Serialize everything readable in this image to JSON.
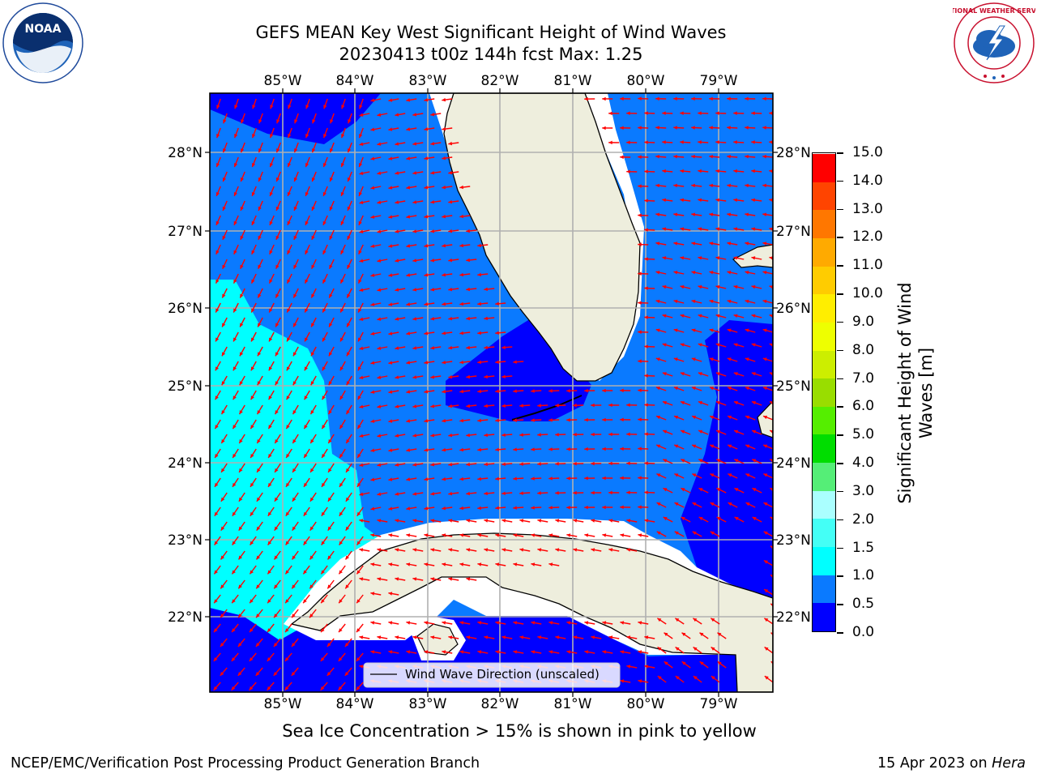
{
  "header": {
    "title_line1": "GEFS MEAN Key West Significant Height of Wind Waves",
    "title_line2": "20230413 t00z 144h fcst   Max: 1.25"
  },
  "logos": {
    "left": "NOAA",
    "right_ring_text": "NATIONAL WEATHER SERVICE"
  },
  "map": {
    "lon_labels": [
      "85°W",
      "84°W",
      "83°W",
      "82°W",
      "81°W",
      "80°W",
      "79°W"
    ],
    "lat_labels": [
      "28°N",
      "27°N",
      "26°N",
      "25°N",
      "24°N",
      "23°N",
      "22°N"
    ],
    "legend_label": "Wind Wave Direction (unscaled)",
    "colors": {
      "ocean_dark": "#0000ff",
      "ocean_mid": "#0a7aff",
      "ocean_light": "#00ffff",
      "land": "#eeeedd",
      "arrows": "#ff0000",
      "grid": "#b0b0b0"
    }
  },
  "colorbar": {
    "title": "Significant Height of Wind Waves [m]",
    "labels": [
      "0.0",
      "0.5",
      "1.0",
      "1.5",
      "2.0",
      "3.0",
      "4.0",
      "5.0",
      "6.0",
      "7.0",
      "8.0",
      "9.0",
      "10.0",
      "11.0",
      "12.0",
      "13.0",
      "14.0",
      "15.0"
    ],
    "colors": [
      "#0000ff",
      "#0a7aff",
      "#00ffff",
      "#44fff6",
      "#aaffff",
      "#55ee77",
      "#00dd00",
      "#55ee00",
      "#99dd00",
      "#ccee00",
      "#eeff00",
      "#ffee00",
      "#ffcc00",
      "#ffaa00",
      "#ff7700",
      "#ff4400",
      "#ff0000"
    ]
  },
  "notes": {
    "sea_ice": "Sea Ice Concentration > 15% is shown in pink to yellow"
  },
  "footer": {
    "left": "NCEP/EMC/Verification Post Processing Product Generation Branch",
    "right_date": "15 Apr 2023 on",
    "right_host": "Hera"
  }
}
